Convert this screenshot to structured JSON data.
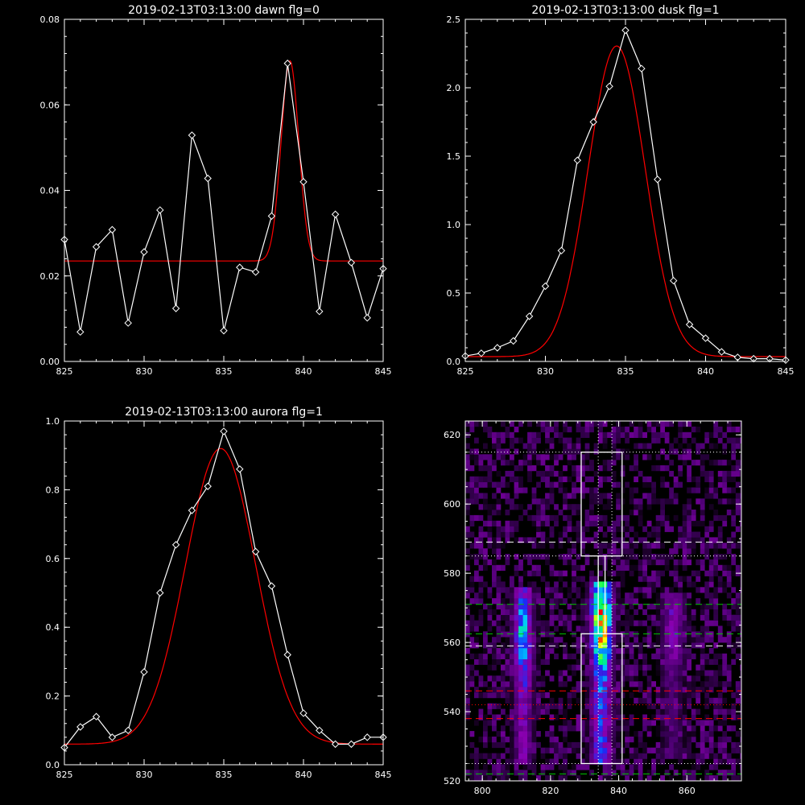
{
  "chart_data": [
    {
      "type": "line",
      "title": "2019-02-13T03:13:00 dawn flg=0",
      "xlim": [
        825,
        845
      ],
      "ylim": [
        0,
        0.08
      ],
      "xticks": [
        "825",
        "830",
        "835",
        "840",
        "845"
      ],
      "xtick_values": [
        825,
        830,
        835,
        840,
        845
      ],
      "yticks": [
        "0.00",
        "0.02",
        "0.04",
        "0.06",
        "0.08"
      ],
      "ytick_values": [
        0,
        0.02,
        0.04,
        0.06,
        0.08
      ],
      "series": [
        {
          "color": "#ffffff",
          "marker": "diamond",
          "x": [
            825,
            826,
            827,
            828,
            829,
            830,
            831,
            832,
            833,
            834,
            835,
            836,
            837,
            838,
            839,
            840,
            841,
            842,
            843,
            844,
            845
          ],
          "y": [
            0.0285,
            0.0069,
            0.0268,
            0.0308,
            0.009,
            0.0256,
            0.0354,
            0.0124,
            0.0529,
            0.0428,
            0.0072,
            0.022,
            0.0209,
            0.034,
            0.0697,
            0.042,
            0.0117,
            0.0344,
            0.0231,
            0.0102,
            0.0217
          ]
        },
        {
          "color": "#ff0000",
          "model": "gaussian",
          "baseline": 0.0235,
          "amplitude": 0.0468,
          "center": 839.15,
          "sigma": 0.55
        }
      ]
    },
    {
      "type": "line",
      "title": "2019-02-13T03:13:00 dusk flg=1",
      "xlim": [
        825,
        845
      ],
      "ylim": [
        0,
        2.5
      ],
      "xticks": [
        "825",
        "830",
        "835",
        "840",
        "845"
      ],
      "xtick_values": [
        825,
        830,
        835,
        840,
        845
      ],
      "yticks": [
        "0.0",
        "0.5",
        "1.0",
        "1.5",
        "2.0",
        "2.5"
      ],
      "ytick_values": [
        0,
        0.5,
        1.0,
        1.5,
        2.0,
        2.5
      ],
      "series": [
        {
          "color": "#ffffff",
          "marker": "diamond",
          "x": [
            825,
            826,
            827,
            828,
            829,
            830,
            831,
            832,
            833,
            834,
            835,
            836,
            837,
            838,
            839,
            840,
            841,
            842,
            843,
            844,
            845
          ],
          "y": [
            0.04,
            0.06,
            0.1,
            0.15,
            0.33,
            0.55,
            0.81,
            1.47,
            1.75,
            2.01,
            2.42,
            2.14,
            1.33,
            0.59,
            0.27,
            0.17,
            0.07,
            0.03,
            0.02,
            0.02,
            0.01
          ]
        },
        {
          "color": "#ff0000",
          "model": "gaussian",
          "baseline": 0.035,
          "amplitude": 2.27,
          "center": 834.45,
          "sigma": 1.78
        }
      ]
    },
    {
      "type": "line",
      "title": "2019-02-13T03:13:00 aurora flg=1",
      "xlim": [
        825,
        845
      ],
      "ylim": [
        0,
        1.0
      ],
      "xticks": [
        "825",
        "830",
        "835",
        "840",
        "845"
      ],
      "xtick_values": [
        825,
        830,
        835,
        840,
        845
      ],
      "yticks": [
        "0.0",
        "0.2",
        "0.4",
        "0.6",
        "0.8",
        "1.0"
      ],
      "ytick_values": [
        0,
        0.2,
        0.4,
        0.6,
        0.8,
        1.0
      ],
      "series": [
        {
          "color": "#ffffff",
          "marker": "diamond",
          "x": [
            825,
            826,
            827,
            828,
            829,
            830,
            831,
            832,
            833,
            834,
            835,
            836,
            837,
            838,
            839,
            840,
            841,
            842,
            843,
            844,
            845
          ],
          "y": [
            0.05,
            0.11,
            0.14,
            0.08,
            0.1,
            0.27,
            0.5,
            0.64,
            0.74,
            0.81,
            0.97,
            0.86,
            0.62,
            0.52,
            0.32,
            0.15,
            0.1,
            0.06,
            0.06,
            0.08,
            0.08
          ]
        },
        {
          "color": "#ff0000",
          "model": "gaussian",
          "baseline": 0.06,
          "amplitude": 0.86,
          "center": 834.8,
          "sigma": 2.2
        }
      ]
    },
    {
      "type": "heatmap",
      "xlim": [
        795,
        876
      ],
      "ylim": [
        520,
        624
      ],
      "xticks": [
        "800",
        "820",
        "840",
        "860"
      ],
      "xtick_values": [
        800,
        820,
        840,
        860
      ],
      "yticks": [
        "520",
        "540",
        "560",
        "580",
        "600",
        "620"
      ],
      "ytick_values": [
        520,
        540,
        560,
        580,
        600,
        620
      ],
      "colormap": [
        "#000000",
        "#4a0070",
        "#8a00b0",
        "#1030ff",
        "#00c8ff",
        "#00ff60",
        "#ffff00",
        "#ff0000"
      ],
      "emission_lines": [
        {
          "center": 812,
          "width": 2.6,
          "ymin": 524,
          "ymax": 575,
          "peak": 0.62,
          "peak_y": 562
        },
        {
          "center": 835,
          "width": 2.8,
          "ymin": 524,
          "ymax": 577,
          "peak": 1.0,
          "peak_y": 566
        },
        {
          "center": 856,
          "width": 3.0,
          "ymin": 528,
          "ymax": 574,
          "peak": 0.32,
          "peak_y": 564
        }
      ],
      "boxes": [
        {
          "x0": 829,
          "x1": 841,
          "y0": 585,
          "y1": 615,
          "color": "#ffffff"
        },
        {
          "x0": 829,
          "x1": 841,
          "y0": 525,
          "y1": 562.5,
          "color": "#ffffff"
        },
        {
          "x0": 834,
          "x1": 836,
          "y0": 562.5,
          "y1": 585,
          "color": "#ffffff"
        }
      ],
      "hlines": [
        {
          "y": 615,
          "style": "dotted",
          "color": "#ffffff"
        },
        {
          "y": 589,
          "style": "dashed",
          "color": "#ffffff"
        },
        {
          "y": 585,
          "style": "dotted",
          "color": "#ffffff"
        },
        {
          "y": 571,
          "style": "dashed",
          "color": "#00c800"
        },
        {
          "y": 562.5,
          "style": "dashed",
          "color": "#00c800"
        },
        {
          "y": 559,
          "style": "dashed",
          "color": "#ffffff"
        },
        {
          "y": 546,
          "style": "dashed",
          "color": "#ff0000"
        },
        {
          "y": 542,
          "style": "dotted",
          "color": "#ff0000"
        },
        {
          "y": 538,
          "style": "dashed",
          "color": "#ff0000"
        },
        {
          "y": 525,
          "style": "dotted",
          "color": "#ffffff"
        },
        {
          "y": 522,
          "style": "dashed",
          "color": "#00c800"
        }
      ],
      "vlines": [
        {
          "x": 834,
          "style": "dotted",
          "color": "#ffffff"
        },
        {
          "x": 838,
          "style": "dotted",
          "color": "#ffffff"
        }
      ]
    }
  ]
}
